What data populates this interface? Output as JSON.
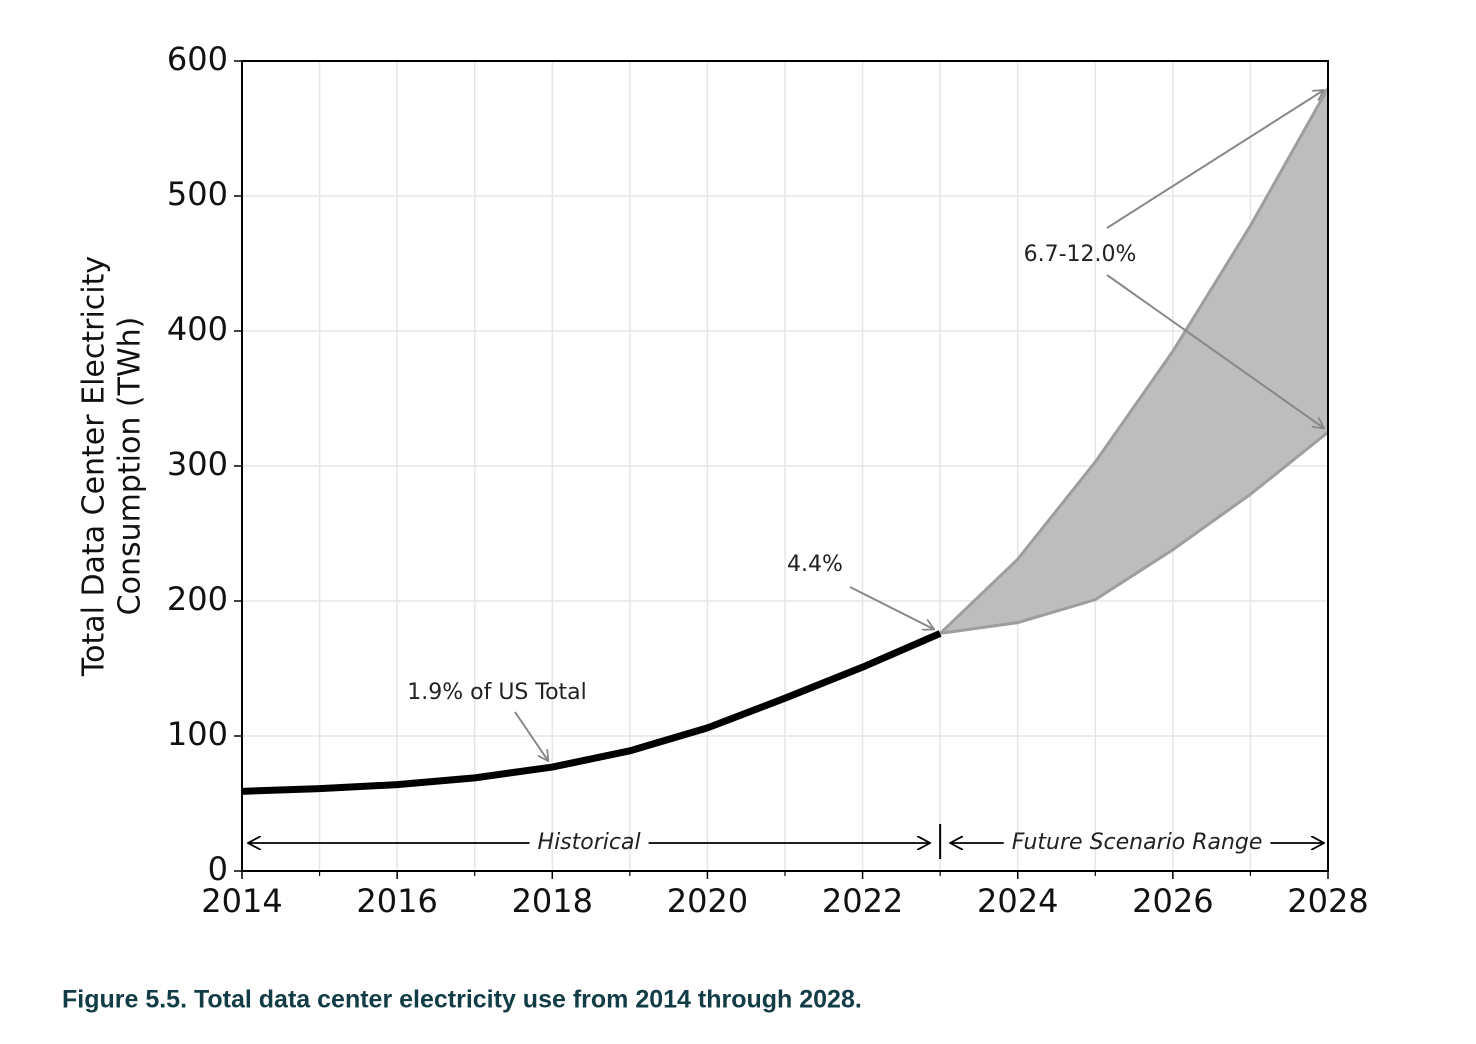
{
  "chart_data": {
    "type": "line",
    "y_label": [
      "Total Data Center Electricity",
      "Consumption (TWh)"
    ],
    "x": [
      2014,
      2015,
      2016,
      2017,
      2018,
      2019,
      2020,
      2021,
      2022,
      2023,
      2024,
      2025,
      2026,
      2027,
      2028
    ],
    "series": [
      {
        "color": "#000000",
        "values": [
          59,
          61,
          64,
          69,
          77,
          89,
          106,
          128,
          151,
          176,
          null,
          null,
          null,
          null,
          null
        ]
      }
    ],
    "range": {
      "color": "#bdbdbd",
      "edge_color": "#9e9e9e",
      "upper": [
        null,
        null,
        null,
        null,
        null,
        null,
        null,
        null,
        null,
        176,
        231,
        303,
        385,
        478,
        580
      ],
      "lower": [
        null,
        null,
        null,
        null,
        null,
        null,
        null,
        null,
        null,
        176,
        184,
        201,
        238,
        279,
        325
      ]
    },
    "xlim": [
      2014,
      2028
    ],
    "xticks": [
      2014,
      2016,
      2018,
      2020,
      2022,
      2024,
      2026,
      2028
    ],
    "xminorticks": [
      2015,
      2017,
      2019,
      2021,
      2023,
      2025,
      2027
    ],
    "ylim": [
      0,
      600
    ],
    "yticks": [
      0,
      100,
      200,
      300,
      400,
      500,
      600
    ],
    "grid": true,
    "annotations": [
      "1.9% of US Total",
      "4.4%",
      "6.7-12.0%"
    ],
    "spans": [
      "Historical",
      "Future Scenario Range"
    ],
    "caption": "Figure 5.5.  Total data center electricity use from 2014 through 2028."
  }
}
